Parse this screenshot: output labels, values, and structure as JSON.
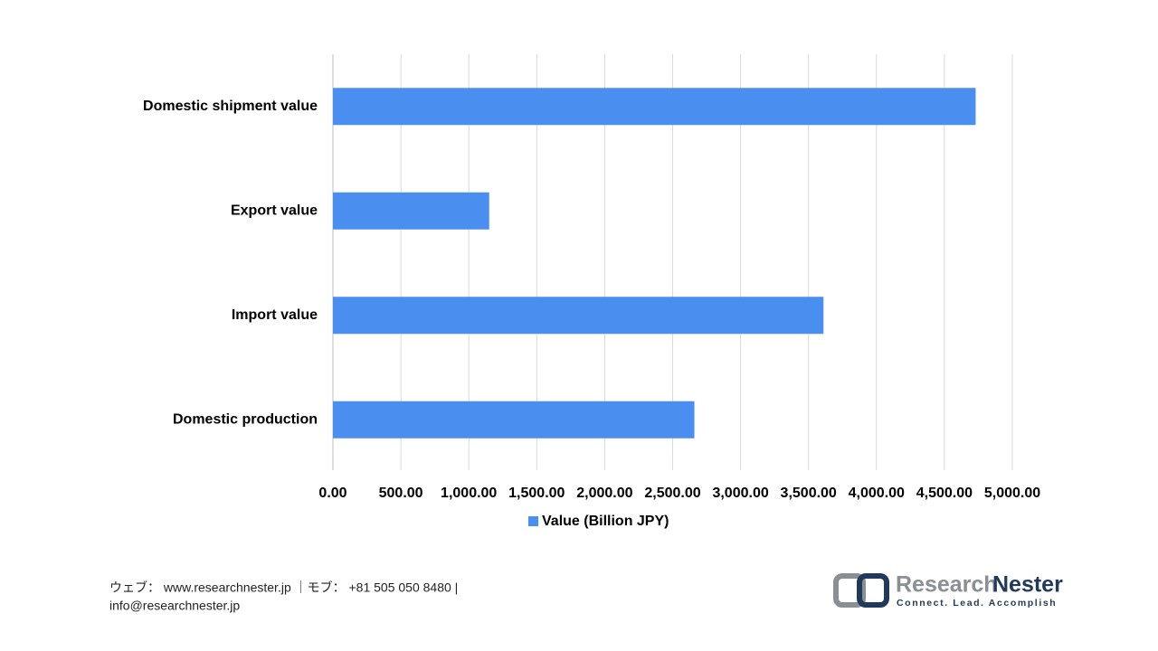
{
  "chart_data": {
    "type": "hbar",
    "categories": [
      "Domestic shipment value",
      "Export value",
      "Import value",
      "Domestic production"
    ],
    "series": [
      {
        "name": "Value (Billion JPY)",
        "color": "#4a8ef0",
        "values": [
          4730,
          1150,
          3610,
          2660
        ]
      }
    ],
    "xlim": [
      0,
      5000
    ],
    "xticks": [
      {
        "value": 0,
        "label": "0.00"
      },
      {
        "value": 500,
        "label": "500.00"
      },
      {
        "value": 1000,
        "label": "1,000.00"
      },
      {
        "value": 1500,
        "label": "1,500.00"
      },
      {
        "value": 2000,
        "label": "2,000.00"
      },
      {
        "value": 2500,
        "label": "2,500.00"
      },
      {
        "value": 3000,
        "label": "3,000.00"
      },
      {
        "value": 3500,
        "label": "3,500.00"
      },
      {
        "value": 4000,
        "label": "4,000.00"
      },
      {
        "value": 4500,
        "label": "4,500.00"
      },
      {
        "value": 5000,
        "label": "5,000.00"
      }
    ],
    "grid": true,
    "legend": "bottom"
  },
  "footer": {
    "line1": "ウェブ： www.researchnester.jp ｜モブ： +81 505 050 8480 |",
    "line2": "info@researchnester.jp"
  },
  "logo": {
    "name1": "Research",
    "name2": "Nester",
    "tagline": "Connect. Lead. Accomplish"
  }
}
